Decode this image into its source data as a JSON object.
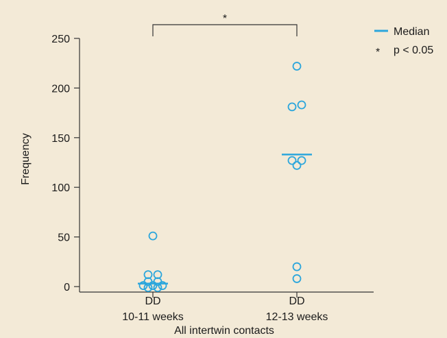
{
  "chart_data": {
    "type": "scatter",
    "title": "",
    "xlabel": "All intertwin contacts",
    "ylabel": "Frequency",
    "ylim": [
      0,
      250
    ],
    "yticks": [
      0,
      50,
      100,
      150,
      200,
      250
    ],
    "categories": [
      {
        "line1": "DD",
        "line2": "10-11 weeks"
      },
      {
        "line1": "DD",
        "line2": "12-13 weeks"
      }
    ],
    "groups": [
      {
        "category_index": 0,
        "points": [
          {
            "offset": 0,
            "y": 51
          },
          {
            "offset": -0.5,
            "y": 12
          },
          {
            "offset": 0.5,
            "y": 12
          },
          {
            "offset": -0.5,
            "y": 5
          },
          {
            "offset": 0.5,
            "y": 5
          },
          {
            "offset": -1,
            "y": 1
          },
          {
            "offset": 0,
            "y": 1
          },
          {
            "offset": 1,
            "y": 1
          },
          {
            "offset": -0.5,
            "y": -1
          },
          {
            "offset": 0.5,
            "y": -1
          }
        ],
        "median": 3
      },
      {
        "category_index": 1,
        "points": [
          {
            "offset": 0,
            "y": 222
          },
          {
            "offset": -0.5,
            "y": 181
          },
          {
            "offset": 0.5,
            "y": 183
          },
          {
            "offset": -0.5,
            "y": 127
          },
          {
            "offset": 0.5,
            "y": 127
          },
          {
            "offset": 0,
            "y": 122
          },
          {
            "offset": 0,
            "y": 20
          },
          {
            "offset": 0,
            "y": 8
          }
        ],
        "median": 133
      }
    ],
    "significance": {
      "from": 0,
      "to": 1,
      "label": "*"
    },
    "legend": {
      "placement": "top-right",
      "median_label": "Median",
      "sig_symbol": "*",
      "sig_label": "p < 0.05"
    },
    "colors": {
      "marker": "#2ba6dc",
      "median": "#2ba6dc",
      "axis": "#333333",
      "background": "#f3ead7"
    },
    "grid": false
  }
}
